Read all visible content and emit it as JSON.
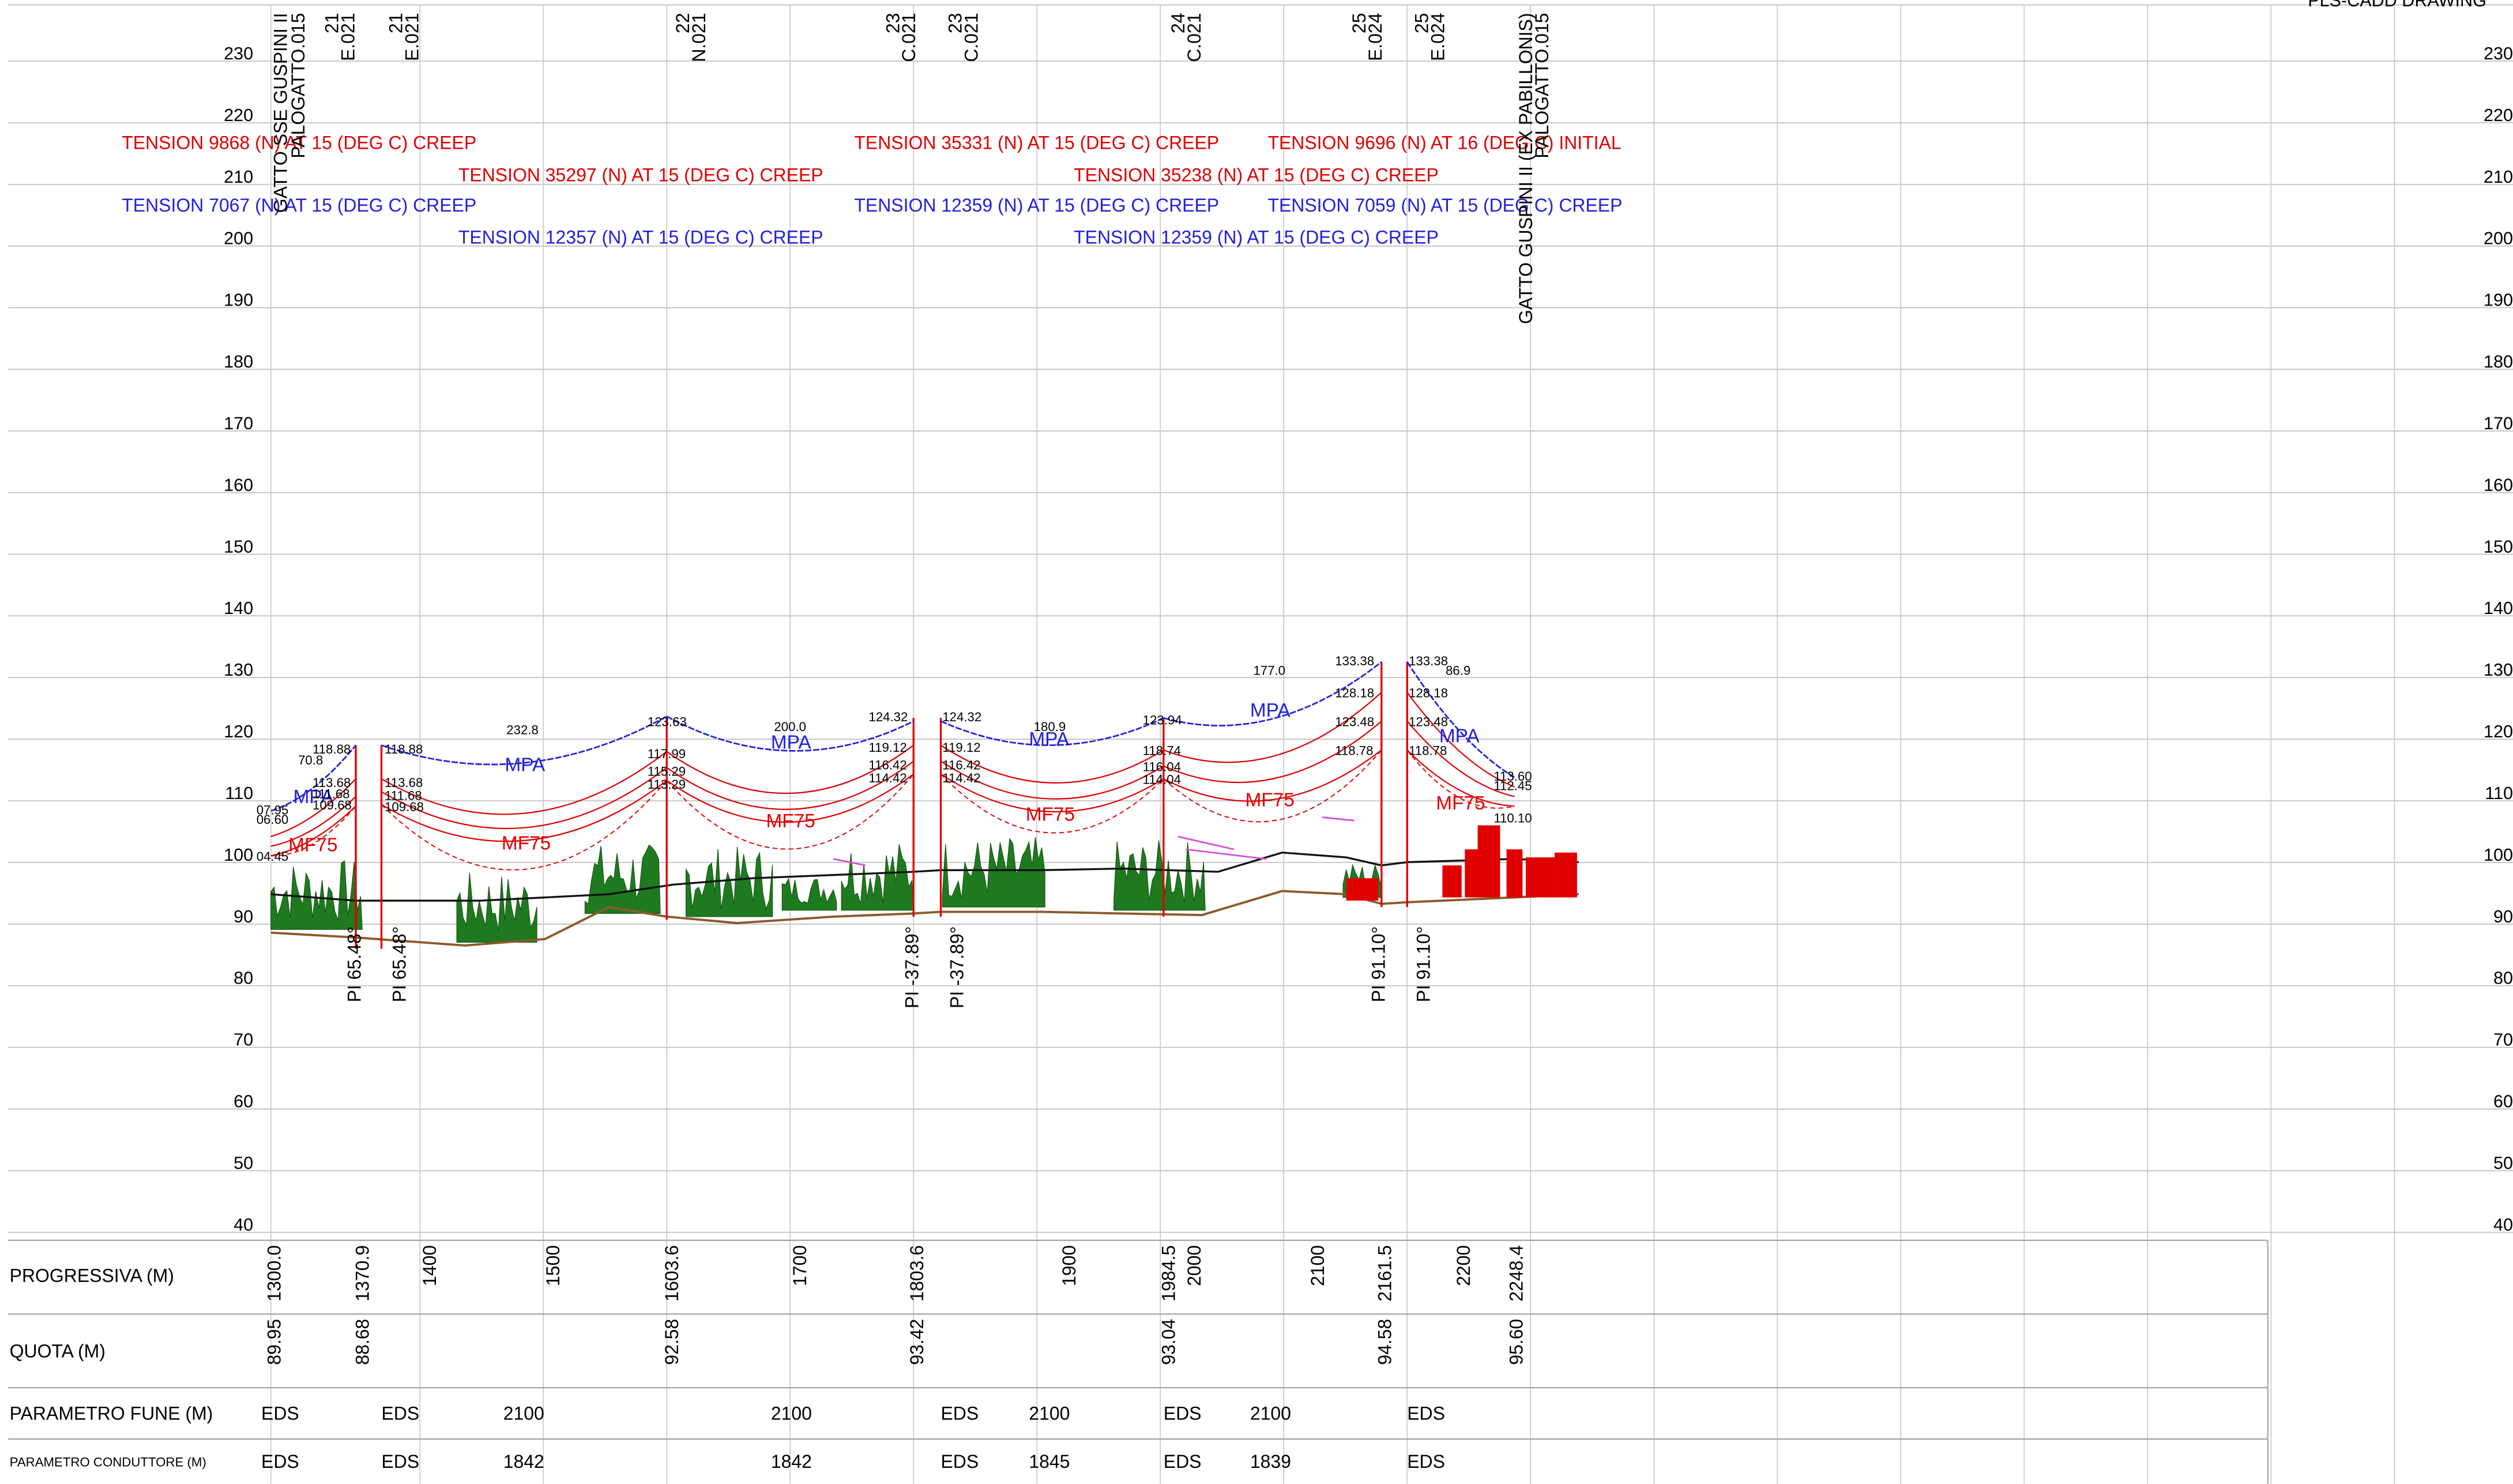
{
  "header": {
    "title": "PLS-CADD DRAWING"
  },
  "elevation_axis": {
    "labels": [
      "230",
      "220",
      "210",
      "200",
      "190",
      "180",
      "170",
      "160",
      "150",
      "140",
      "130",
      "120",
      "110",
      "100",
      "90",
      "80",
      "70",
      "60",
      "50",
      "40"
    ]
  },
  "end_structures": [
    {
      "name": "GATTO SSE GUSPINI II",
      "code": "PALOGATTO.015"
    },
    {
      "name": "GATTO GUSPINI II (EX PABILLONIS)",
      "code": "PALOGATTO.015"
    }
  ],
  "structures": [
    {
      "number": "21",
      "code": "E.021"
    },
    {
      "number": "21",
      "code": "E.021"
    },
    {
      "number": "22",
      "code": "N.021"
    },
    {
      "number": "23",
      "code": "C.021"
    },
    {
      "number": "23",
      "code": "C.021"
    },
    {
      "number": "24",
      "code": "C.021"
    },
    {
      "number": "25",
      "code": "E.024"
    },
    {
      "number": "25",
      "code": "E.024"
    }
  ],
  "tensions": [
    "TENSION 9868 (N) AT 15 (DEG C) CREEP",
    "TENSION 35331 (N) AT 15 (DEG C) CREEP",
    "TENSION 9696 (N) AT 16 (DEG C) INITIAL",
    "TENSION 35297 (N) AT 15 (DEG C) CREEP",
    "TENSION 35238 (N) AT 15 (DEG C) CREEP",
    "TENSION 7067 (N) AT 15 (DEG C) CREEP",
    "TENSION 12359 (N) AT 15 (DEG C) CREEP",
    "TENSION 7059 (N) AT 15 (DEG C) CREEP",
    "TENSION 12357 (N) AT 15 (DEG C) CREEP",
    "TENSION 12359 (N) AT 15 (DEG C) CREEP"
  ],
  "spans": [
    {
      "mpa": "MPA",
      "mf75": "MF75",
      "labels": [
        "118.88",
        "70.8",
        "113.68",
        "111.68",
        "109.68",
        "07.95",
        "06.60",
        "04.45"
      ]
    },
    {
      "mpa": "MPA",
      "mf75": "MF75",
      "labels": [
        "118.88",
        "113.68",
        "111.68",
        "109.68",
        "232.8",
        "123.63",
        "117.99",
        "115.29",
        "113.29"
      ]
    },
    {
      "mpa": "MPA",
      "mf75": "MF75",
      "labels": [
        "200.0",
        "124.32",
        "119.12",
        "116.42",
        "114.42"
      ]
    },
    {
      "mpa": "MPA",
      "mf75": "MF75",
      "labels": [
        "124.32",
        "119.12",
        "116.42",
        "114.42",
        "180.9",
        "123.94",
        "118.74",
        "116.04",
        "114.04"
      ]
    },
    {
      "mpa": "MPA",
      "mf75": "MF75",
      "labels": [
        "177.0",
        "133.38",
        "128.18",
        "123.48",
        "118.78"
      ]
    },
    {
      "mpa": "MPA",
      "mf75": "MF75",
      "labels": [
        "133.38",
        "86.9",
        "128.18",
        "123.48",
        "118.78",
        "113.60",
        "112.45",
        "110.10"
      ]
    }
  ],
  "pi_labels": [
    "PI 65.48°",
    "PI 65.48°",
    "PI -37.89°",
    "PI -37.89°",
    "PI 91.10°",
    "PI 91.10°"
  ],
  "table": {
    "rows": [
      {
        "header": "PROGRESSIVA (M)",
        "cells": [
          "1300.0",
          "1370.9",
          "1400",
          "1500",
          "1603.6",
          "1700",
          "1803.6",
          "1900",
          "1984.5",
          "2000",
          "2100",
          "2161.5",
          "2200",
          "2248.4"
        ]
      },
      {
        "header": "QUOTA (M)",
        "cells": [
          "89.95",
          "88.68",
          "92.58",
          "93.42",
          "93.04",
          "94.58",
          "95.60"
        ]
      },
      {
        "header": "PARAMETRO FUNE (M)",
        "cells": [
          "EDS",
          "EDS",
          "2100",
          "2100",
          "EDS",
          "2100",
          "EDS",
          "2100",
          "EDS"
        ]
      },
      {
        "header": "PARAMETRO CONDUTTORE (M)",
        "cells": [
          "EDS",
          "EDS",
          "1842",
          "1842",
          "EDS",
          "1845",
          "EDS",
          "1839",
          "EDS"
        ]
      }
    ]
  }
}
